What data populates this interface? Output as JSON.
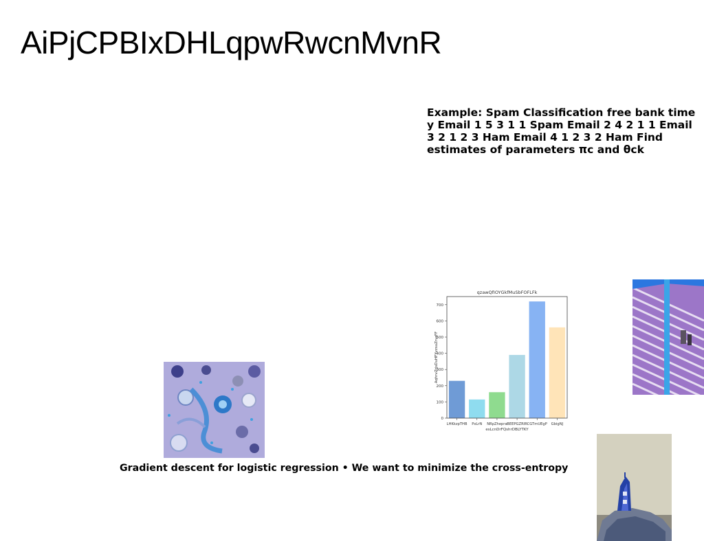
{
  "slide": {
    "title": "AiPjCPBIxDHLqpwRwcnMvnR",
    "example_text": "Example: Spam Classification free bank time y Email 1 5 3 1 1 Spam Email 2 4 2 1 1 Email 3 2 1 2 3 Ham Email 4 1 2 3 2 Ham Find estimates of parameters πc and θck",
    "caption": "Gradient descent for logistic regression • We want to minimize the cross-entropy"
  },
  "chart_data": {
    "type": "bar",
    "title": "qzawQfIOYGkfMuSbFOFLFk",
    "xlabel": "esLcnDrFQshrDBLYTKY",
    "ylabel": "AqhrvZrjsDuHFYvzsuZrurFF",
    "categories": [
      "LHKkzpTHB",
      "PxLrN",
      "NRpZhepra",
      "BEEPGZRIR",
      "CGTmUEgP",
      "GbigNJ"
    ],
    "values": [
      230,
      115,
      160,
      390,
      720,
      560
    ],
    "colors": [
      "#6f9bd6",
      "#8fdcef",
      "#8fdb8f",
      "#add8e6",
      "#87b3f3",
      "#ffe4b8"
    ],
    "ylim": [
      0,
      750
    ],
    "yticks": [
      0,
      100,
      200,
      300,
      400,
      500,
      600,
      700
    ],
    "grid": false
  },
  "images": {
    "ornaments": "photo-ornaments",
    "building": "photo-building",
    "lighthouse": "photo-lighthouse"
  }
}
